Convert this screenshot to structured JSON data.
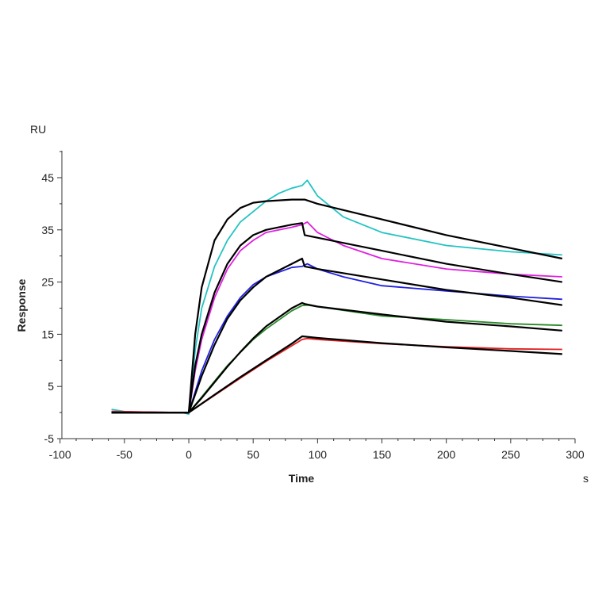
{
  "chart_data": {
    "type": "line",
    "title": "",
    "xlabel": "Time",
    "xunit": "s",
    "ylabel": "Response",
    "yunit": "RU",
    "xlim": [
      -100,
      300
    ],
    "ylim": [
      -5,
      50
    ],
    "xticks": [
      -100,
      -50,
      0,
      50,
      100,
      150,
      200,
      250,
      300
    ],
    "yticks": [
      -5,
      5,
      15,
      25,
      35,
      45
    ],
    "grid": false,
    "legend": "none",
    "series": [
      {
        "color": "#22c3c3",
        "x": [
          -60,
          -50,
          -30,
          -5,
          0,
          5,
          10,
          20,
          30,
          40,
          50,
          60,
          70,
          80,
          88,
          92,
          100,
          120,
          150,
          200,
          250,
          290
        ],
        "y": [
          0.6,
          0.2,
          0,
          0,
          -0.3,
          12,
          20,
          28,
          33,
          36.5,
          38.5,
          40.5,
          42,
          43,
          43.5,
          44.5,
          41.5,
          37.5,
          34.5,
          32,
          30.8,
          30.2
        ]
      },
      {
        "color": "#e020e0",
        "x": [
          -60,
          -5,
          0,
          5,
          10,
          20,
          30,
          40,
          50,
          60,
          80,
          88,
          92,
          100,
          120,
          150,
          200,
          250,
          290
        ],
        "y": [
          0.2,
          0,
          0,
          8,
          14,
          22,
          27.5,
          31,
          33,
          34.5,
          35.5,
          36,
          36.5,
          34.5,
          32,
          29.5,
          27.5,
          26.5,
          26
        ]
      },
      {
        "color": "#2020e0",
        "x": [
          -60,
          -5,
          0,
          10,
          20,
          30,
          40,
          50,
          60,
          80,
          88,
          92,
          100,
          120,
          150,
          200,
          250,
          290
        ],
        "y": [
          0.1,
          0,
          0,
          8,
          14,
          18.5,
          22,
          24.5,
          26,
          27.8,
          28,
          28.5,
          27.5,
          26,
          24.3,
          23.3,
          22.3,
          21.7
        ]
      },
      {
        "color": "#2a8a2a",
        "x": [
          -60,
          -5,
          0,
          10,
          20,
          30,
          40,
          50,
          60,
          80,
          88,
          92,
          100,
          150,
          200,
          250,
          290
        ],
        "y": [
          0.1,
          0,
          0,
          3,
          6,
          9,
          11.5,
          14,
          16,
          19.5,
          20.5,
          20.6,
          20.3,
          18.5,
          17.8,
          17,
          16.7
        ]
      },
      {
        "color": "#e02020",
        "x": [
          -60,
          -5,
          0,
          20,
          40,
          60,
          80,
          88,
          92,
          100,
          150,
          200,
          250,
          290
        ],
        "y": [
          0.2,
          0,
          0,
          3.3,
          6.6,
          9.8,
          12.8,
          14,
          14.2,
          14,
          13.2,
          12.6,
          12.2,
          12.1
        ]
      },
      {
        "color": "#000000",
        "x": [
          -60,
          0,
          5,
          10,
          20,
          30,
          40,
          50,
          60,
          80,
          90,
          100,
          150,
          200,
          250,
          290
        ],
        "y": [
          0,
          0,
          15,
          24,
          33,
          37,
          39.2,
          40.2,
          40.5,
          40.8,
          40.8,
          40,
          37,
          34,
          31.5,
          29.5
        ]
      },
      {
        "color": "#000000",
        "x": [
          -60,
          0,
          5,
          10,
          20,
          30,
          40,
          50,
          60,
          80,
          88,
          90,
          100,
          150,
          200,
          250,
          290
        ],
        "y": [
          0,
          0,
          9,
          15,
          23,
          28.5,
          32,
          34,
          35,
          36,
          36.3,
          34,
          33.5,
          31,
          28.5,
          26.5,
          25
        ]
      },
      {
        "color": "#000000",
        "x": [
          -60,
          0,
          10,
          20,
          30,
          40,
          50,
          60,
          80,
          88,
          90,
          100,
          150,
          200,
          250,
          290
        ],
        "y": [
          0,
          0,
          7,
          13,
          18,
          21.5,
          24,
          26,
          28.5,
          29.5,
          28,
          27.5,
          25.5,
          23.5,
          22,
          20.6
        ]
      },
      {
        "color": "#000000",
        "x": [
          -60,
          0,
          10,
          20,
          30,
          40,
          50,
          60,
          80,
          88,
          90,
          100,
          150,
          200,
          250,
          290
        ],
        "y": [
          0,
          0,
          2.8,
          5.8,
          8.8,
          11.6,
          14.2,
          16.5,
          20,
          21,
          20.8,
          20.3,
          18.8,
          17.4,
          16.5,
          15.7
        ]
      },
      {
        "color": "#000000",
        "x": [
          -60,
          0,
          20,
          40,
          60,
          80,
          88,
          100,
          150,
          200,
          250,
          290
        ],
        "y": [
          0,
          0,
          3.4,
          6.8,
          10,
          13.2,
          14.6,
          14.3,
          13.3,
          12.5,
          11.8,
          11.2
        ]
      }
    ]
  }
}
